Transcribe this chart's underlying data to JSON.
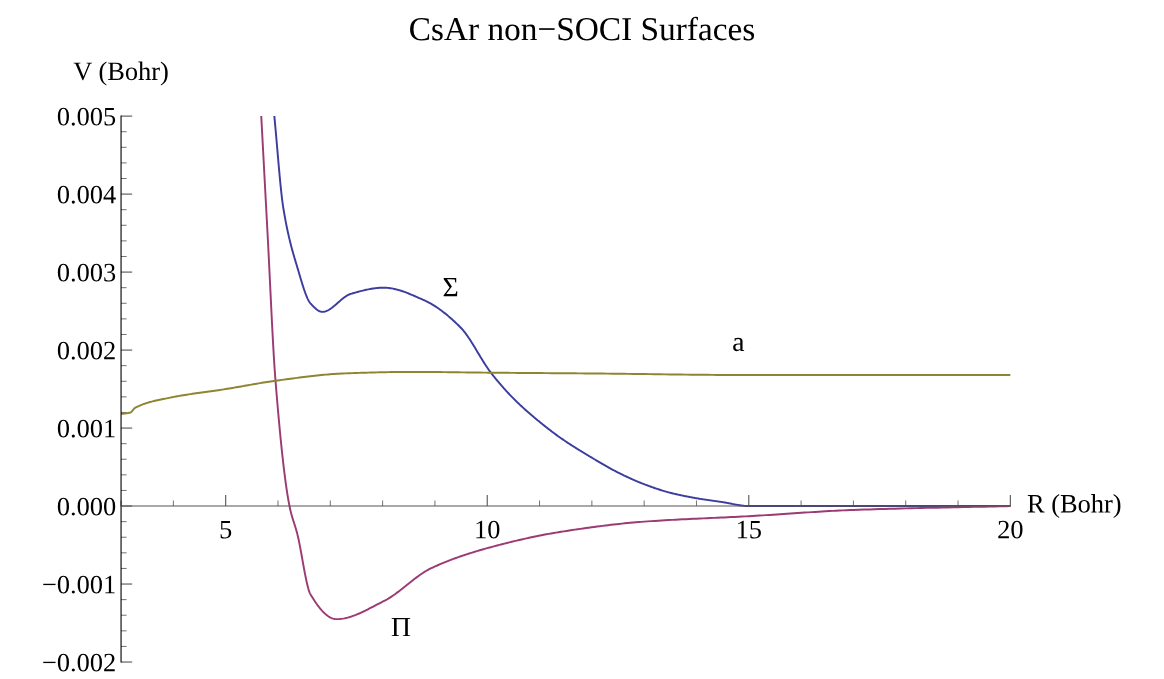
{
  "chart_data": {
    "type": "line",
    "title": "CsAr non−SOCI Surfaces",
    "xlabel": "R (Bohr)",
    "ylabel": "V (Bohr)",
    "xlim": [
      3,
      20
    ],
    "ylim": [
      -0.002,
      0.005
    ],
    "xticks": [
      5,
      10,
      15,
      20
    ],
    "yticks": [
      {
        "value": -0.002,
        "label": "−0.002"
      },
      {
        "value": -0.001,
        "label": "−0.001"
      },
      {
        "value": 0,
        "label": "0.000"
      },
      {
        "value": 0.001,
        "label": "0.001"
      },
      {
        "value": 0.002,
        "label": "0.002"
      },
      {
        "value": 0.003,
        "label": "0.003"
      },
      {
        "value": 0.004,
        "label": "0.004"
      },
      {
        "value": 0.005,
        "label": "0.005"
      }
    ],
    "grid": false,
    "legend": false,
    "marker": "none",
    "line_style": "solid",
    "series": [
      {
        "color": "#3d3d9f",
        "x": [
          5.93,
          6.1,
          6.37,
          6.62,
          6.85,
          7.39,
          8.02,
          8.79,
          9.49,
          10.07,
          10.5,
          11.0,
          11.41,
          12.0,
          12.5,
          13.0,
          13.5,
          14.0,
          14.5,
          15.0,
          16.0,
          17.0,
          18.0,
          20.0
        ],
        "values": [
          0.005,
          0.00383,
          0.00306,
          0.0026,
          0.00249,
          0.00272,
          0.0028,
          0.00264,
          0.00229,
          0.00171,
          0.00138,
          0.00108,
          0.00087,
          0.00062,
          0.00043,
          0.00028,
          0.00017,
          0.0001,
          5e-05,
          0.0,
          0.0,
          0.0,
          0.0,
          0.0
        ]
      },
      {
        "color": "#9c3b73",
        "x": [
          5.68,
          5.8,
          5.95,
          6.22,
          6.37,
          6.62,
          7.12,
          8.02,
          8.92,
          10.0,
          11.41,
          13.0,
          15.0,
          17.0,
          20.0
        ],
        "values": [
          0.005,
          0.0035,
          0.00163,
          0.0,
          -0.00036,
          -0.00113,
          -0.00145,
          -0.00122,
          -0.0008,
          -0.00054,
          -0.00033,
          -0.0002,
          -0.00013,
          -5e-05,
          0.0
        ]
      },
      {
        "color": "#8f8430",
        "x": [
          3.0,
          3.18,
          3.27,
          3.94,
          5.0,
          5.99,
          7.25,
          8.54,
          10.07,
          12.0,
          15.0,
          20.0
        ],
        "values": [
          0.00118,
          0.0012,
          0.00126,
          0.00139,
          0.0015,
          0.00161,
          0.0017,
          0.00172,
          0.00171,
          0.0017,
          0.00168,
          0.00168
        ]
      }
    ],
    "annotations": [
      {
        "text": "Σ",
        "x": 9.3,
        "y": 0.0024
      },
      {
        "text": "Π",
        "x": 8.35,
        "y": -0.0011
      },
      {
        "text": "a",
        "x": 14.8,
        "y": 0.0017
      }
    ]
  }
}
